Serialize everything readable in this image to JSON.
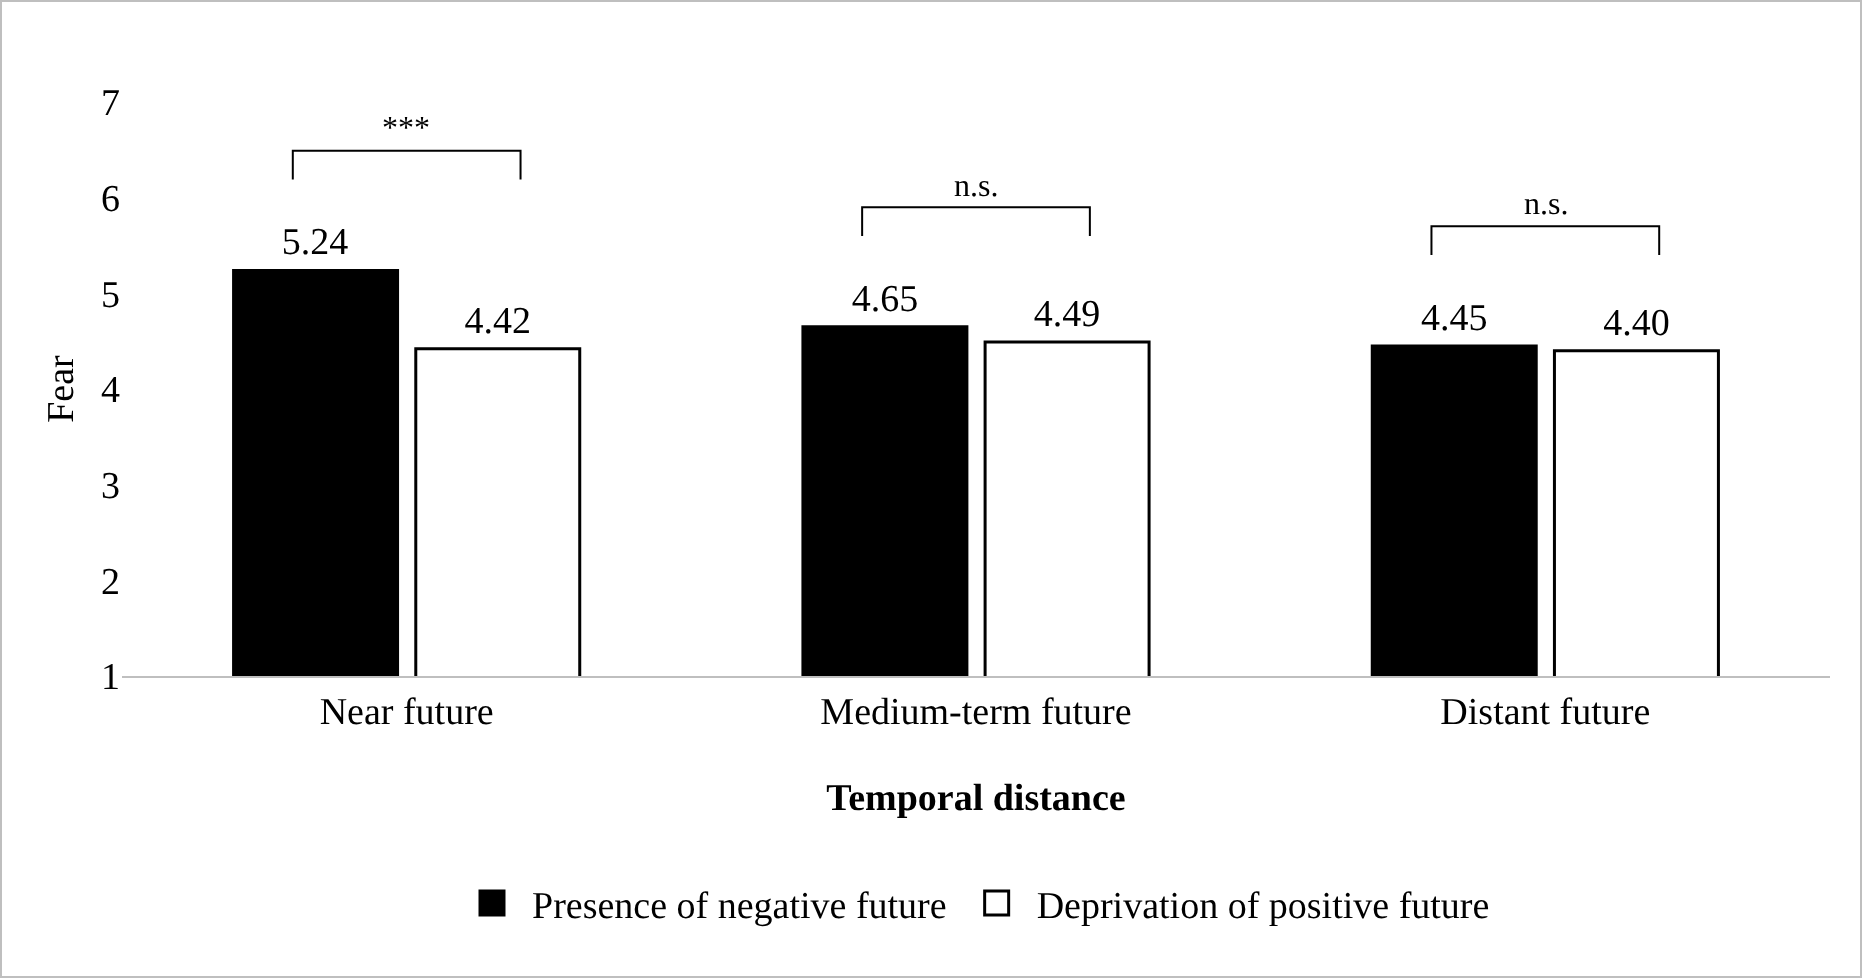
{
  "chart_data": {
    "type": "bar",
    "xlabel": "Temporal distance",
    "ylabel": "Fear",
    "categories": [
      "Near future",
      "Medium-term future",
      "Distant future"
    ],
    "series": [
      {
        "name": "Presence of negative future",
        "color": "#000000",
        "values": [
          5.24,
          4.65,
          4.45
        ],
        "value_labels": [
          "5.24",
          "4.65",
          "4.45"
        ]
      },
      {
        "name": "Deprivation of positive future",
        "color": "#ffffff",
        "values": [
          4.42,
          4.49,
          4.4
        ],
        "value_labels": [
          "4.42",
          "4.49",
          "4.40"
        ]
      }
    ],
    "ylim": [
      1,
      7
    ],
    "yticks": [
      1,
      2,
      3,
      4,
      5,
      6,
      7
    ],
    "grid": false,
    "legend": "bottom",
    "annotations": [
      "***",
      "n.s.",
      "n.s."
    ]
  }
}
